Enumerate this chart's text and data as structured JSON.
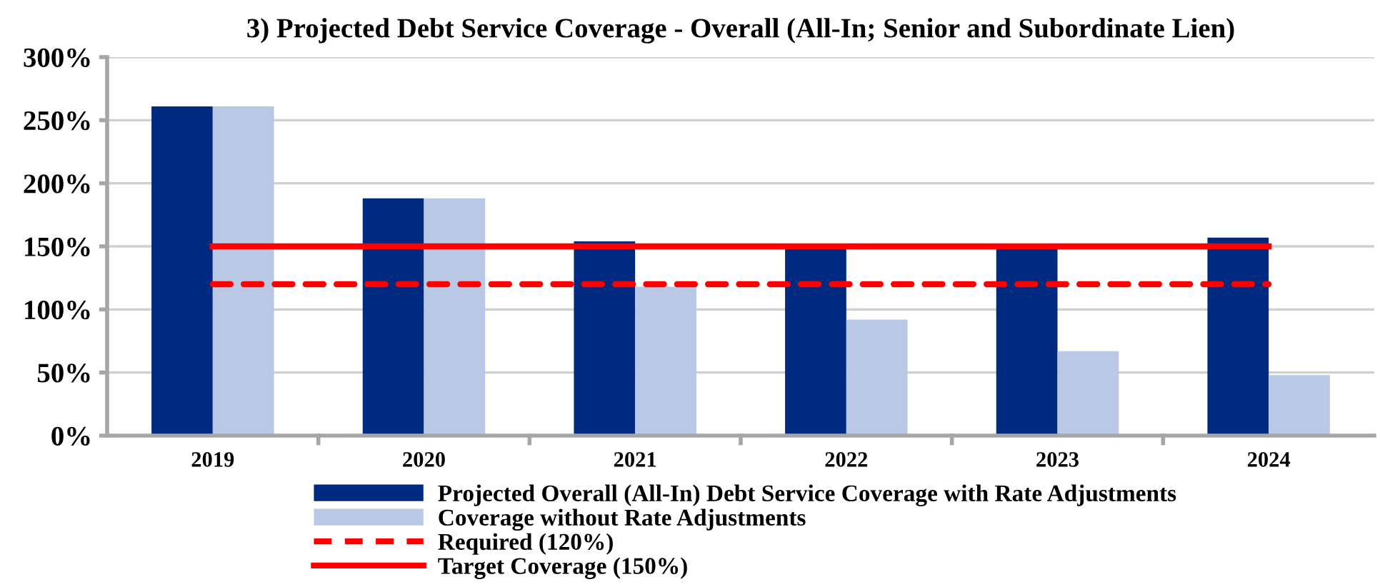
{
  "chart_data": {
    "type": "bar",
    "title": "3) Projected Debt Service Coverage - Overall (All-In; Senior and Subordinate Lien)",
    "categories": [
      "2019",
      "2020",
      "2021",
      "2022",
      "2023",
      "2024"
    ],
    "series": [
      {
        "name": "Projected Overall (All-In) Debt Service Coverage with Rate Adjustments",
        "color": "#002a7f",
        "values": [
          261,
          188,
          154,
          151,
          150,
          157
        ]
      },
      {
        "name": "Coverage without Rate Adjustments",
        "color": "#b9c8e4",
        "values": [
          261,
          188,
          118,
          92,
          67,
          48
        ]
      },
      {
        "name": "Required (120%)",
        "type": "line",
        "color": "#ff0000",
        "line_style": "dashed",
        "values": [
          120,
          120,
          120,
          120,
          120,
          120
        ]
      },
      {
        "name": "Target Coverage (150%)",
        "type": "line",
        "color": "#ff0000",
        "line_style": "solid",
        "values": [
          150,
          150,
          150,
          150,
          150,
          150
        ]
      }
    ],
    "ylim": [
      0,
      300
    ],
    "yticks": [
      {
        "value": 0,
        "label": "0%"
      },
      {
        "value": 50,
        "label": "50%"
      },
      {
        "value": 100,
        "label": "100%"
      },
      {
        "value": 150,
        "label": "150%"
      },
      {
        "value": 200,
        "label": "200%"
      },
      {
        "value": 250,
        "label": "250%"
      },
      {
        "value": 300,
        "label": "300%"
      }
    ],
    "grid": "y",
    "legend": "bottom",
    "marker": "none"
  }
}
